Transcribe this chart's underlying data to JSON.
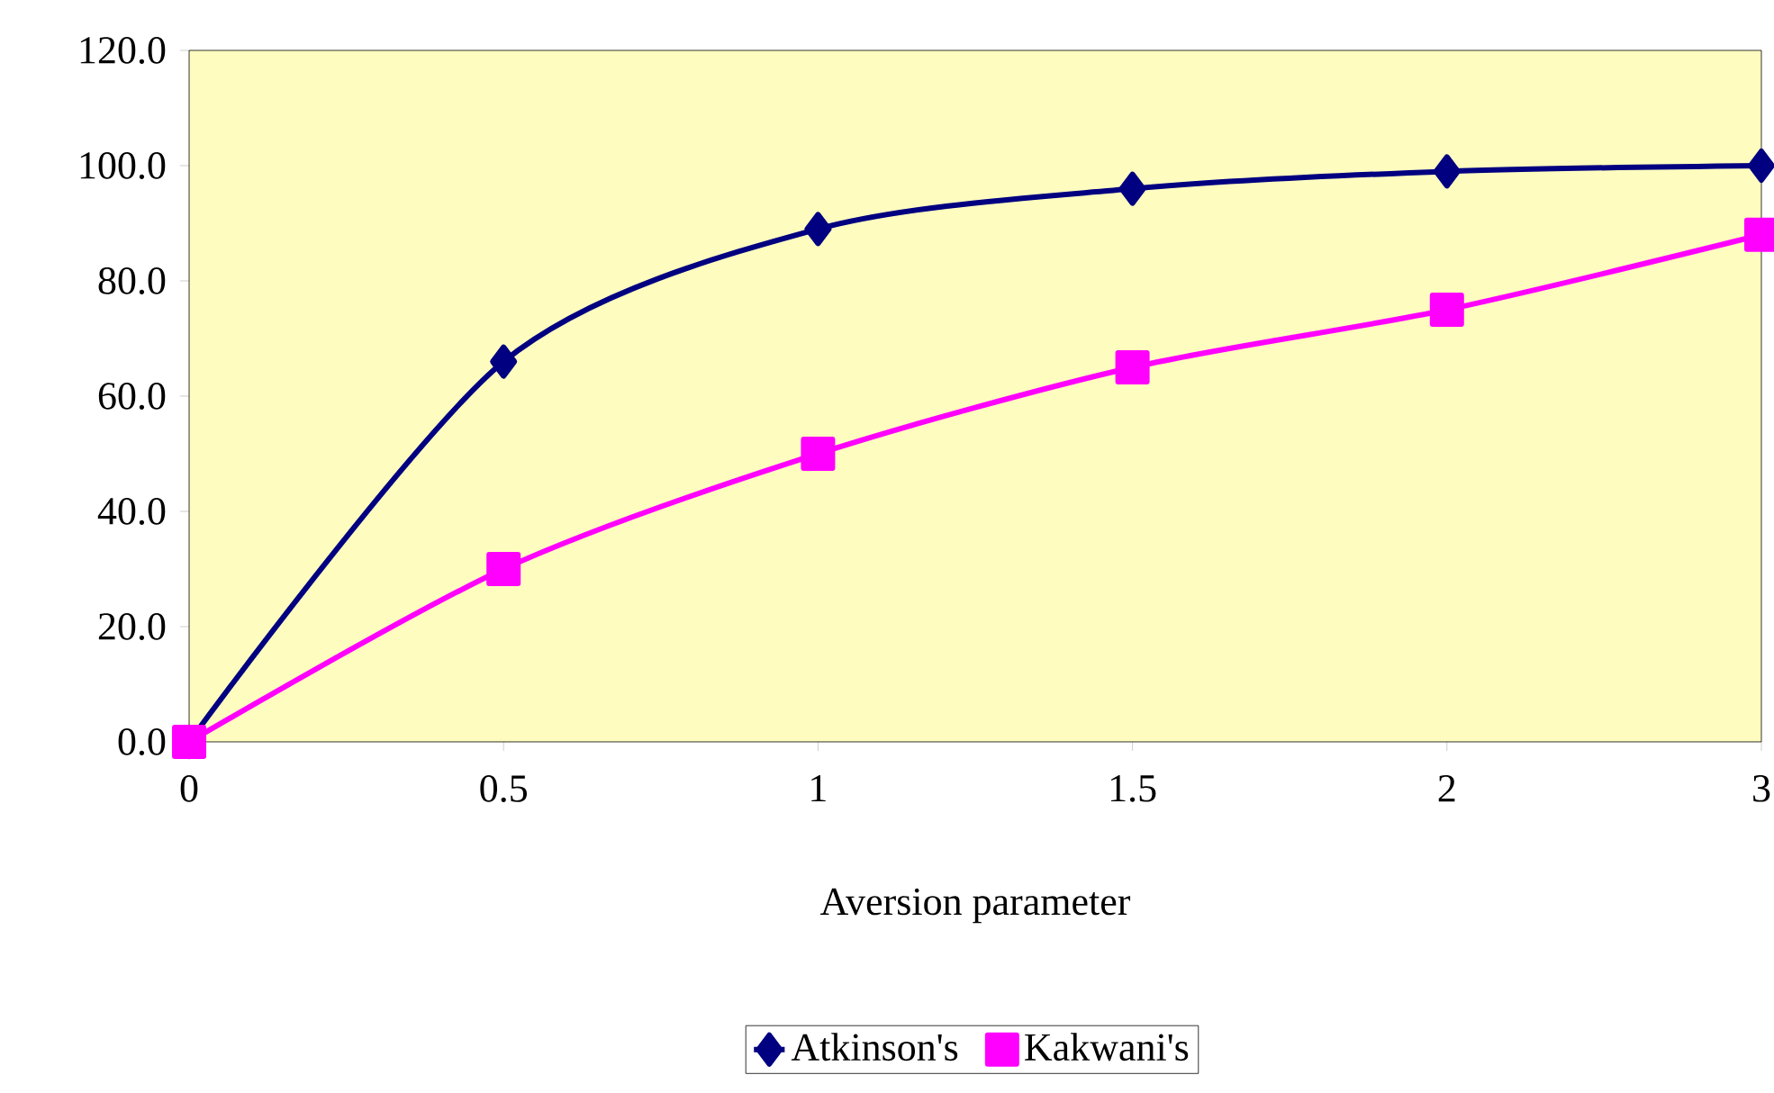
{
  "chart_data": {
    "type": "line",
    "xlabel": "Aversion parameter",
    "categories": [
      "0",
      "0.5",
      "1",
      "1.5",
      "2",
      "3"
    ],
    "series": [
      {
        "name": "Atkinson's",
        "color": "#000080",
        "marker": "diamond",
        "values": [
          0,
          66,
          89,
          96,
          99,
          100
        ]
      },
      {
        "name": "Kakwani's",
        "color": "#ff00ff",
        "marker": "square",
        "values": [
          0,
          30,
          50,
          65,
          75,
          88
        ]
      }
    ],
    "ylim": [
      0,
      120
    ],
    "yticks": [
      {
        "value": 0,
        "label": "0.0"
      },
      {
        "value": 20,
        "label": "20.0"
      },
      {
        "value": 40,
        "label": "40.0"
      },
      {
        "value": 60,
        "label": "60.0"
      },
      {
        "value": 80,
        "label": "80.0"
      },
      {
        "value": 100,
        "label": "100.0"
      },
      {
        "value": 120,
        "label": "120.0"
      }
    ],
    "grid": false,
    "legend": "bottom",
    "line_style": "solid"
  }
}
